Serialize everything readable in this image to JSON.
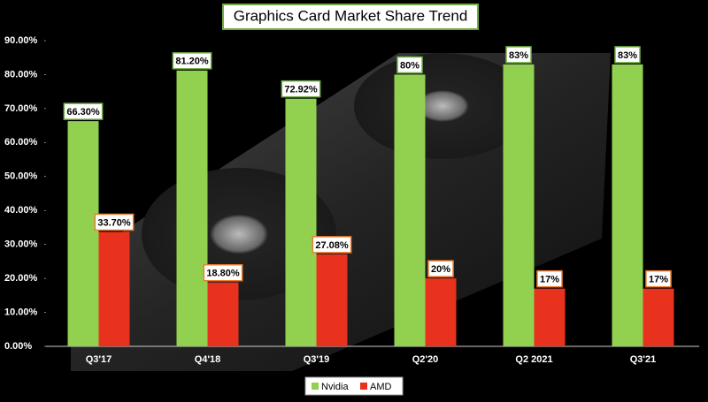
{
  "chart_data": {
    "type": "bar",
    "title": "Graphics Card  Market Share Trend",
    "categories": [
      "Q3'17",
      "Q4'18",
      "Q3'19",
      "Q2'20",
      "Q2 2021",
      "Q3'21"
    ],
    "series": [
      {
        "name": "Nvidia",
        "color": "#92d050",
        "values": [
          66.3,
          81.2,
          72.92,
          80,
          83,
          83
        ],
        "value_labels": [
          "66.30%",
          "81.20%",
          "72.92%",
          "80%",
          "83%",
          "83%"
        ]
      },
      {
        "name": "AMD",
        "color": "#e8321e",
        "values": [
          33.7,
          18.8,
          27.08,
          20,
          17,
          17
        ],
        "value_labels": [
          "33.70%",
          "18.80%",
          "27.08%",
          "20%",
          "17%",
          "17%"
        ]
      }
    ],
    "ylim": [
      0,
      90
    ],
    "yticks": [
      {
        "value": 0,
        "label": "0.00%"
      },
      {
        "value": 10,
        "label": "10.00%"
      },
      {
        "value": 20,
        "label": "20.00%"
      },
      {
        "value": 30,
        "label": "30.00%"
      },
      {
        "value": 40,
        "label": "40.00%"
      },
      {
        "value": 50,
        "label": "50.00%"
      },
      {
        "value": 60,
        "label": "60.00%"
      },
      {
        "value": 70,
        "label": "70.00%"
      },
      {
        "value": 80,
        "label": "80.00%"
      },
      {
        "value": 90,
        "label": "90.00%"
      }
    ],
    "legend": "bottom"
  }
}
